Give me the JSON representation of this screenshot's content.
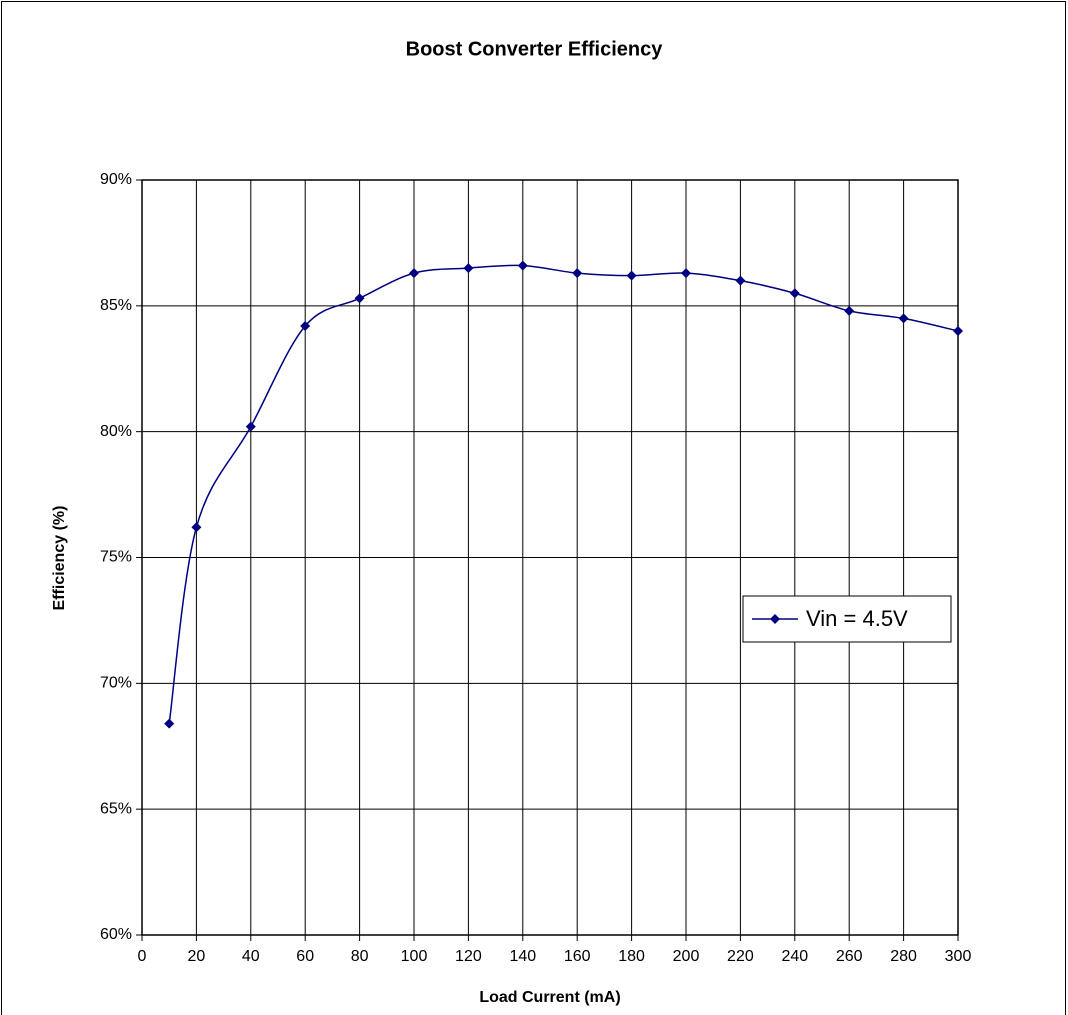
{
  "chart_data": {
    "type": "line",
    "title": "Boost Converter Efficiency",
    "xlabel": "Load Current (mA)",
    "ylabel": "Efficiency (%)",
    "x": [
      10,
      20,
      40,
      60,
      80,
      100,
      120,
      140,
      160,
      180,
      200,
      220,
      240,
      260,
      280,
      300
    ],
    "series": [
      {
        "name": "Vin = 4.5V",
        "color": "#000080",
        "values": [
          68.4,
          76.2,
          80.2,
          84.2,
          85.3,
          86.3,
          86.5,
          86.6,
          86.3,
          86.2,
          86.3,
          86.0,
          85.5,
          84.8,
          84.5,
          84.0
        ]
      }
    ],
    "xlim": [
      0,
      300
    ],
    "xticks": [
      0,
      20,
      40,
      60,
      80,
      100,
      120,
      140,
      160,
      180,
      200,
      220,
      240,
      260,
      280,
      300
    ],
    "ylim": [
      60,
      90
    ],
    "yticks": [
      {
        "value": 60,
        "label": "60%"
      },
      {
        "value": 65,
        "label": "65%"
      },
      {
        "value": 70,
        "label": "70%"
      },
      {
        "value": 75,
        "label": "75%"
      },
      {
        "value": 80,
        "label": "80%"
      },
      {
        "value": 85,
        "label": "85%"
      },
      {
        "value": 90,
        "label": "90%"
      }
    ],
    "grid": true,
    "smooth": true,
    "legend": "right"
  }
}
